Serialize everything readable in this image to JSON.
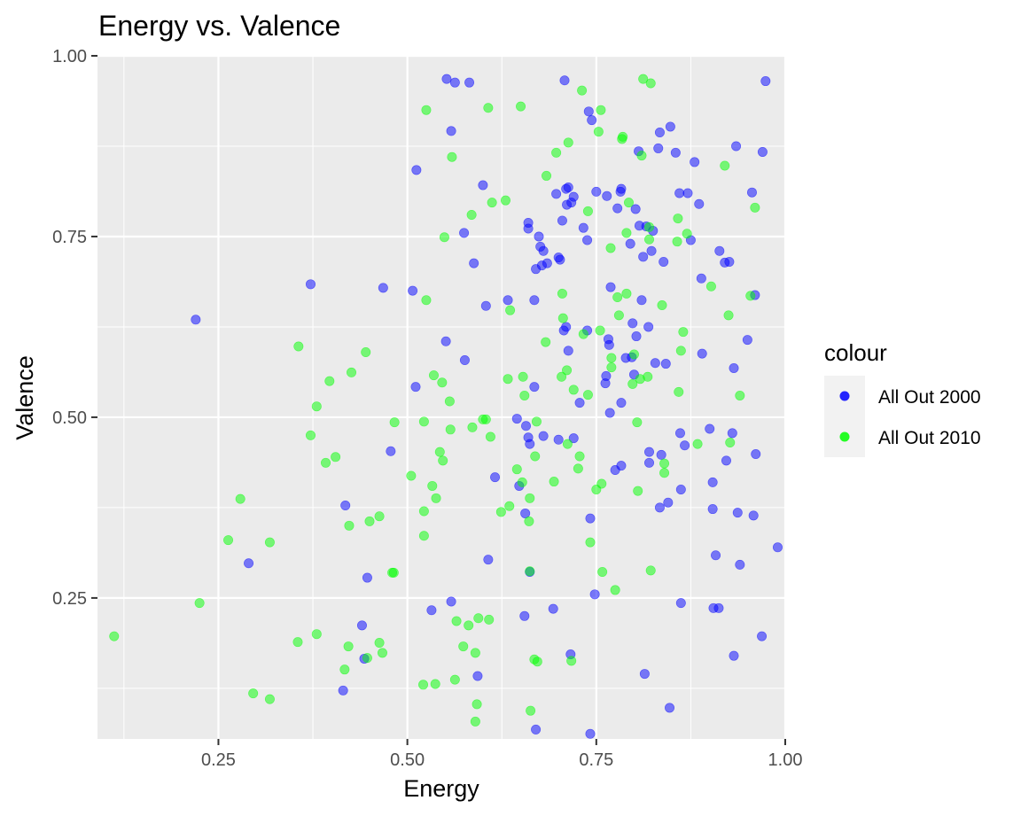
{
  "chart_data": {
    "type": "scatter",
    "title": "Energy vs. Valence",
    "xlabel": "Energy",
    "ylabel": "Valence",
    "xlim": [
      0.09,
      1.0
    ],
    "ylim": [
      0.055,
      1.0
    ],
    "x_ticks": [
      0.25,
      0.5,
      0.75,
      1.0
    ],
    "x_tick_labels": [
      "0.25",
      "0.50",
      "0.75",
      "1.00"
    ],
    "y_ticks": [
      0.25,
      0.5,
      0.75,
      1.0
    ],
    "y_tick_labels": [
      "0.25",
      "0.50",
      "0.75",
      "1.00"
    ],
    "grid": true,
    "legend": {
      "title": "colour",
      "placement": "right"
    },
    "series": [
      {
        "name": "All Out 2000",
        "color": "#0000ff",
        "points": [
          [
            0.22,
            0.635
          ],
          [
            0.29,
            0.298
          ],
          [
            0.372,
            0.684
          ],
          [
            0.415,
            0.122
          ],
          [
            0.418,
            0.378
          ],
          [
            0.44,
            0.212
          ],
          [
            0.443,
            0.166
          ],
          [
            0.447,
            0.278
          ],
          [
            0.468,
            0.679
          ],
          [
            0.478,
            0.453
          ],
          [
            0.507,
            0.675
          ],
          [
            0.512,
            0.842
          ],
          [
            0.511,
            0.542
          ],
          [
            0.532,
            0.233
          ],
          [
            0.551,
            0.605
          ],
          [
            0.552,
            0.968
          ],
          [
            0.558,
            0.896
          ],
          [
            0.558,
            0.245
          ],
          [
            0.563,
            0.963
          ],
          [
            0.575,
            0.755
          ],
          [
            0.576,
            0.579
          ],
          [
            0.582,
            0.963
          ],
          [
            0.588,
            0.713
          ],
          [
            0.593,
            0.142
          ],
          [
            0.6,
            0.821
          ],
          [
            0.604,
            0.654
          ],
          [
            0.607,
            0.303
          ],
          [
            0.616,
            0.417
          ],
          [
            0.633,
            0.662
          ],
          [
            0.645,
            0.498
          ],
          [
            0.648,
            0.405
          ],
          [
            0.655,
            0.225
          ],
          [
            0.656,
            0.367
          ],
          [
            0.657,
            0.488
          ],
          [
            0.66,
            0.769
          ],
          [
            0.66,
            0.761
          ],
          [
            0.66,
            0.472
          ],
          [
            0.662,
            0.463
          ],
          [
            0.662,
            0.286
          ],
          [
            0.668,
            0.542
          ],
          [
            0.668,
            0.662
          ],
          [
            0.67,
            0.705
          ],
          [
            0.67,
            0.068
          ],
          [
            0.674,
            0.75
          ],
          [
            0.676,
            0.736
          ],
          [
            0.678,
            0.71
          ],
          [
            0.68,
            0.73
          ],
          [
            0.68,
            0.474
          ],
          [
            0.685,
            0.713
          ],
          [
            0.693,
            0.235
          ],
          [
            0.697,
            0.809
          ],
          [
            0.7,
            0.721
          ],
          [
            0.7,
            0.469
          ],
          [
            0.702,
            0.718
          ],
          [
            0.705,
            0.772
          ],
          [
            0.707,
            0.62
          ],
          [
            0.71,
            0.625
          ],
          [
            0.708,
            0.966
          ],
          [
            0.71,
            0.816
          ],
          [
            0.711,
            0.794
          ],
          [
            0.713,
            0.592
          ],
          [
            0.713,
            0.818
          ],
          [
            0.716,
            0.172
          ],
          [
            0.717,
            0.797
          ],
          [
            0.72,
            0.805
          ],
          [
            0.72,
            0.471
          ],
          [
            0.728,
            0.52
          ],
          [
            0.733,
            0.762
          ],
          [
            0.738,
            0.62
          ],
          [
            0.738,
            0.745
          ],
          [
            0.74,
            0.923
          ],
          [
            0.742,
            0.36
          ],
          [
            0.742,
            0.062
          ],
          [
            0.744,
            0.911
          ],
          [
            0.748,
            0.255
          ],
          [
            0.75,
            0.812
          ],
          [
            0.762,
            0.547
          ],
          [
            0.763,
            0.557
          ],
          [
            0.764,
            0.806
          ],
          [
            0.766,
            0.608
          ],
          [
            0.767,
            0.6
          ],
          [
            0.768,
            0.506
          ],
          [
            0.769,
            0.68
          ],
          [
            0.775,
            0.427
          ],
          [
            0.778,
            0.789
          ],
          [
            0.782,
            0.812
          ],
          [
            0.783,
            0.816
          ],
          [
            0.783,
            0.433
          ],
          [
            0.783,
            0.52
          ],
          [
            0.789,
            0.582
          ],
          [
            0.795,
            0.74
          ],
          [
            0.797,
            0.583
          ],
          [
            0.798,
            0.63
          ],
          [
            0.8,
            0.559
          ],
          [
            0.802,
            0.788
          ],
          [
            0.803,
            0.612
          ],
          [
            0.806,
            0.868
          ],
          [
            0.807,
            0.765
          ],
          [
            0.81,
            0.662
          ],
          [
            0.812,
            0.722
          ],
          [
            0.814,
            0.145
          ],
          [
            0.816,
            0.764
          ],
          [
            0.819,
            0.625
          ],
          [
            0.82,
            0.452
          ],
          [
            0.82,
            0.437
          ],
          [
            0.823,
            0.73
          ],
          [
            0.825,
            0.758
          ],
          [
            0.828,
            0.575
          ],
          [
            0.832,
            0.872
          ],
          [
            0.834,
            0.894
          ],
          [
            0.834,
            0.375
          ],
          [
            0.836,
            0.448
          ],
          [
            0.839,
            0.715
          ],
          [
            0.842,
            0.574
          ],
          [
            0.845,
            0.382
          ],
          [
            0.847,
            0.098
          ],
          [
            0.848,
            0.902
          ],
          [
            0.855,
            0.866
          ],
          [
            0.86,
            0.81
          ],
          [
            0.861,
            0.478
          ],
          [
            0.862,
            0.4
          ],
          [
            0.862,
            0.243
          ],
          [
            0.867,
            0.461
          ],
          [
            0.871,
            0.81
          ],
          [
            0.875,
            0.745
          ],
          [
            0.88,
            0.853
          ],
          [
            0.886,
            0.795
          ],
          [
            0.889,
            0.692
          ],
          [
            0.89,
            0.588
          ],
          [
            0.9,
            0.484
          ],
          [
            0.904,
            0.41
          ],
          [
            0.904,
            0.373
          ],
          [
            0.905,
            0.236
          ],
          [
            0.908,
            0.309
          ],
          [
            0.912,
            0.236
          ],
          [
            0.913,
            0.73
          ],
          [
            0.92,
            0.714
          ],
          [
            0.922,
            0.44
          ],
          [
            0.926,
            0.715
          ],
          [
            0.93,
            0.478
          ],
          [
            0.932,
            0.17
          ],
          [
            0.932,
            0.568
          ],
          [
            0.935,
            0.875
          ],
          [
            0.937,
            0.368
          ],
          [
            0.94,
            0.296
          ],
          [
            0.95,
            0.607
          ],
          [
            0.956,
            0.811
          ],
          [
            0.958,
            0.364
          ],
          [
            0.96,
            0.669
          ],
          [
            0.961,
            0.449
          ],
          [
            0.969,
            0.197
          ],
          [
            0.97,
            0.867
          ],
          [
            0.974,
            0.965
          ],
          [
            0.99,
            0.32
          ]
        ]
      },
      {
        "name": "All Out 2010",
        "color": "#00ff00",
        "points": [
          [
            0.112,
            0.197
          ],
          [
            0.225,
            0.243
          ],
          [
            0.263,
            0.33
          ],
          [
            0.279,
            0.387
          ],
          [
            0.296,
            0.118
          ],
          [
            0.318,
            0.11
          ],
          [
            0.318,
            0.327
          ],
          [
            0.355,
            0.189
          ],
          [
            0.356,
            0.598
          ],
          [
            0.372,
            0.475
          ],
          [
            0.38,
            0.2
          ],
          [
            0.38,
            0.515
          ],
          [
            0.392,
            0.437
          ],
          [
            0.397,
            0.55
          ],
          [
            0.405,
            0.445
          ],
          [
            0.417,
            0.151
          ],
          [
            0.422,
            0.183
          ],
          [
            0.423,
            0.35
          ],
          [
            0.426,
            0.562
          ],
          [
            0.445,
            0.59
          ],
          [
            0.447,
            0.167
          ],
          [
            0.45,
            0.356
          ],
          [
            0.463,
            0.363
          ],
          [
            0.463,
            0.188
          ],
          [
            0.467,
            0.174
          ],
          [
            0.48,
            0.285
          ],
          [
            0.482,
            0.285
          ],
          [
            0.483,
            0.493
          ],
          [
            0.505,
            0.419
          ],
          [
            0.521,
            0.13
          ],
          [
            0.522,
            0.37
          ],
          [
            0.522,
            0.336
          ],
          [
            0.522,
            0.494
          ],
          [
            0.525,
            0.925
          ],
          [
            0.525,
            0.662
          ],
          [
            0.533,
            0.405
          ],
          [
            0.535,
            0.558
          ],
          [
            0.537,
            0.131
          ],
          [
            0.538,
            0.388
          ],
          [
            0.543,
            0.452
          ],
          [
            0.546,
            0.548
          ],
          [
            0.547,
            0.44
          ],
          [
            0.549,
            0.749
          ],
          [
            0.556,
            0.522
          ],
          [
            0.557,
            0.483
          ],
          [
            0.559,
            0.86
          ],
          [
            0.563,
            0.137
          ],
          [
            0.565,
            0.218
          ],
          [
            0.574,
            0.183
          ],
          [
            0.581,
            0.212
          ],
          [
            0.585,
            0.78
          ],
          [
            0.586,
            0.486
          ],
          [
            0.59,
            0.079
          ],
          [
            0.59,
            0.174
          ],
          [
            0.592,
            0.103
          ],
          [
            0.594,
            0.222
          ],
          [
            0.6,
            0.497
          ],
          [
            0.604,
            0.497
          ],
          [
            0.607,
            0.928
          ],
          [
            0.608,
            0.22
          ],
          [
            0.61,
            0.473
          ],
          [
            0.612,
            0.797
          ],
          [
            0.624,
            0.369
          ],
          [
            0.63,
            0.8
          ],
          [
            0.633,
            0.553
          ],
          [
            0.635,
            0.377
          ],
          [
            0.636,
            0.648
          ],
          [
            0.645,
            0.428
          ],
          [
            0.65,
            0.93
          ],
          [
            0.652,
            0.41
          ],
          [
            0.653,
            0.556
          ],
          [
            0.655,
            0.53
          ],
          [
            0.661,
            0.356
          ],
          [
            0.662,
            0.287
          ],
          [
            0.662,
            0.388
          ],
          [
            0.663,
            0.094
          ],
          [
            0.668,
            0.165
          ],
          [
            0.669,
            0.446
          ],
          [
            0.671,
            0.494
          ],
          [
            0.672,
            0.162
          ],
          [
            0.683,
            0.604
          ],
          [
            0.684,
            0.834
          ],
          [
            0.694,
            0.411
          ],
          [
            0.697,
            0.866
          ],
          [
            0.704,
            0.556
          ],
          [
            0.705,
            0.671
          ],
          [
            0.706,
            0.637
          ],
          [
            0.711,
            0.565
          ],
          [
            0.712,
            0.463
          ],
          [
            0.713,
            0.88
          ],
          [
            0.717,
            0.163
          ],
          [
            0.72,
            0.538
          ],
          [
            0.726,
            0.429
          ],
          [
            0.728,
            0.446
          ],
          [
            0.731,
            0.952
          ],
          [
            0.733,
            0.615
          ],
          [
            0.739,
            0.785
          ],
          [
            0.739,
            0.531
          ],
          [
            0.742,
            0.327
          ],
          [
            0.75,
            0.4
          ],
          [
            0.753,
            0.895
          ],
          [
            0.755,
            0.62
          ],
          [
            0.756,
            0.925
          ],
          [
            0.757,
            0.408
          ],
          [
            0.758,
            0.286
          ],
          [
            0.769,
            0.734
          ],
          [
            0.77,
            0.569
          ],
          [
            0.77,
            0.582
          ],
          [
            0.775,
            0.261
          ],
          [
            0.778,
            0.666
          ],
          [
            0.78,
            0.641
          ],
          [
            0.784,
            0.885
          ],
          [
            0.785,
            0.888
          ],
          [
            0.79,
            0.755
          ],
          [
            0.79,
            0.671
          ],
          [
            0.793,
            0.797
          ],
          [
            0.798,
            0.546
          ],
          [
            0.8,
            0.587
          ],
          [
            0.804,
            0.493
          ],
          [
            0.805,
            0.398
          ],
          [
            0.808,
            0.553
          ],
          [
            0.81,
            0.862
          ],
          [
            0.812,
            0.968
          ],
          [
            0.818,
            0.556
          ],
          [
            0.82,
            0.746
          ],
          [
            0.82,
            0.763
          ],
          [
            0.822,
            0.288
          ],
          [
            0.822,
            0.962
          ],
          [
            0.837,
            0.655
          ],
          [
            0.84,
            0.436
          ],
          [
            0.84,
            0.423
          ],
          [
            0.857,
            0.743
          ],
          [
            0.858,
            0.775
          ],
          [
            0.859,
            0.535
          ],
          [
            0.862,
            0.592
          ],
          [
            0.865,
            0.618
          ],
          [
            0.87,
            0.754
          ],
          [
            0.884,
            0.463
          ],
          [
            0.902,
            0.681
          ],
          [
            0.92,
            0.848
          ],
          [
            0.925,
            0.641
          ],
          [
            0.927,
            0.465
          ],
          [
            0.94,
            0.53
          ],
          [
            0.954,
            0.668
          ],
          [
            0.96,
            0.79
          ]
        ]
      }
    ]
  }
}
